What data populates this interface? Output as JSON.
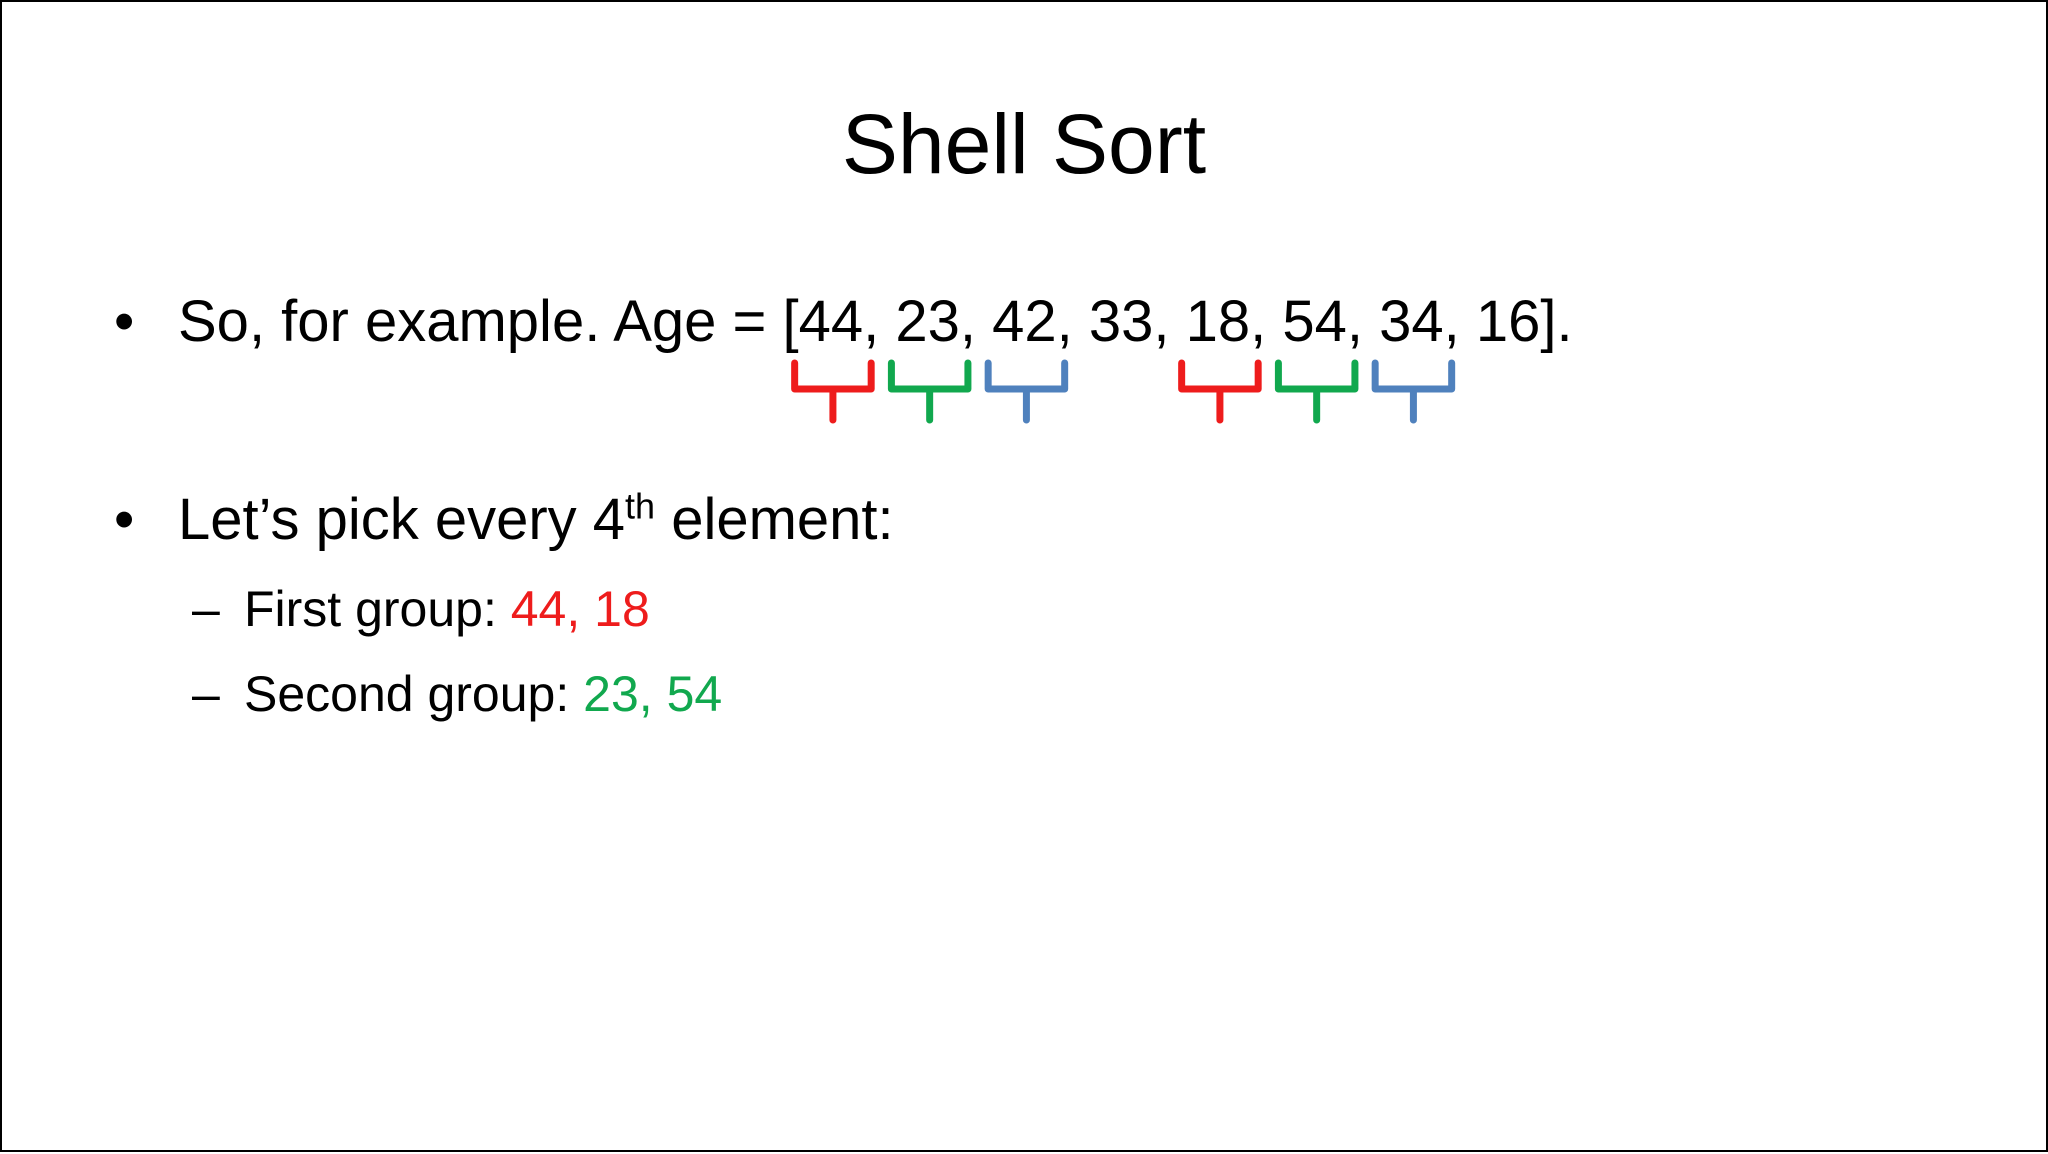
{
  "title": "Shell Sort",
  "bullet_symbol": "•",
  "dash_symbol": "–",
  "bullet1": {
    "prefix": "So, for example. Age = ",
    "open_bracket": "[",
    "values": [
      "44",
      "23",
      "42",
      "33",
      "18",
      "54",
      "34",
      "16"
    ],
    "separator": ", ",
    "close": "]."
  },
  "bullet2": {
    "text_before": "Let’s pick every 4",
    "superscript": "th",
    "text_after": " element:"
  },
  "groups": [
    {
      "label": "First group: ",
      "a": "44",
      "b": "18",
      "sep": ", ",
      "color": "#ee1c1c"
    },
    {
      "label": "Second group: ",
      "a": "23",
      "b": "54",
      "sep": ", ",
      "color": "#11a84e"
    }
  ],
  "brace_colors": [
    "#ee1c1c",
    "#11a84e",
    "#4f81bd"
  ]
}
